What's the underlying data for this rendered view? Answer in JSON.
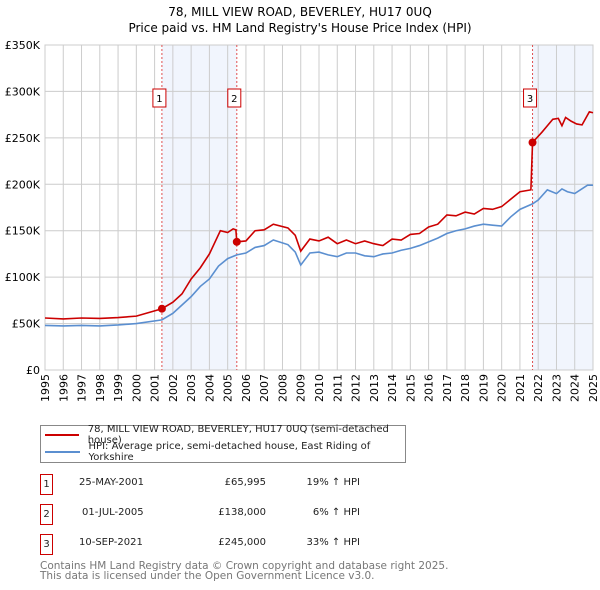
{
  "chart_data": {
    "type": "line",
    "title": "78, MILL VIEW ROAD, BEVERLEY, HU17 0UQ",
    "subtitle": "Price paid vs. HM Land Registry's House Price Index (HPI)",
    "xlim": [
      1995,
      2025
    ],
    "ylim": [
      0,
      350000
    ],
    "x_ticks": [
      "1995",
      "1996",
      "1997",
      "1998",
      "1999",
      "2000",
      "2001",
      "2002",
      "2003",
      "2004",
      "2005",
      "2006",
      "2007",
      "2008",
      "2009",
      "2010",
      "2011",
      "2012",
      "2013",
      "2014",
      "2015",
      "2016",
      "2017",
      "2018",
      "2019",
      "2020",
      "2021",
      "2022",
      "2023",
      "2024",
      "2025"
    ],
    "y_ticks": [
      {
        "v": 0,
        "label": "£0"
      },
      {
        "v": 50000,
        "label": "£50K"
      },
      {
        "v": 100000,
        "label": "£100K"
      },
      {
        "v": 150000,
        "label": "£150K"
      },
      {
        "v": 200000,
        "label": "£200K"
      },
      {
        "v": 250000,
        "label": "£250K"
      },
      {
        "v": 300000,
        "label": "£300K"
      },
      {
        "v": 350000,
        "label": "£350K"
      }
    ],
    "grid": true,
    "series": [
      {
        "name": "78, MILL VIEW ROAD, BEVERLEY, HU17 0UQ (semi-detached house)",
        "color": "#cc0000",
        "points": [
          [
            1995,
            56000
          ],
          [
            1996,
            55000
          ],
          [
            1997,
            56000
          ],
          [
            1998,
            55500
          ],
          [
            1999,
            56500
          ],
          [
            2000,
            58000
          ],
          [
            2001.4,
            66000
          ],
          [
            2002,
            73000
          ],
          [
            2002.5,
            82000
          ],
          [
            2003,
            98000
          ],
          [
            2003.5,
            110000
          ],
          [
            2004,
            125000
          ],
          [
            2004.6,
            150000
          ],
          [
            2005,
            148000
          ],
          [
            2005.3,
            152000
          ],
          [
            2005.45,
            151000
          ],
          [
            2005.5,
            138000
          ],
          [
            2006,
            139000
          ],
          [
            2006.5,
            150000
          ],
          [
            2007,
            151000
          ],
          [
            2007.5,
            157000
          ],
          [
            2008.3,
            153000
          ],
          [
            2008.7,
            145000
          ],
          [
            2009,
            128000
          ],
          [
            2009.5,
            141000
          ],
          [
            2010,
            139000
          ],
          [
            2010.5,
            143000
          ],
          [
            2011,
            136000
          ],
          [
            2011.5,
            140000
          ],
          [
            2012,
            136000
          ],
          [
            2012.5,
            139000
          ],
          [
            2013,
            136000
          ],
          [
            2013.5,
            134000
          ],
          [
            2014,
            141000
          ],
          [
            2014.5,
            140000
          ],
          [
            2015,
            146000
          ],
          [
            2015.5,
            147000
          ],
          [
            2016,
            154000
          ],
          [
            2016.5,
            157000
          ],
          [
            2017,
            167000
          ],
          [
            2017.5,
            166000
          ],
          [
            2018,
            170000
          ],
          [
            2018.5,
            168000
          ],
          [
            2019,
            174000
          ],
          [
            2019.5,
            173000
          ],
          [
            2020,
            176000
          ],
          [
            2020.5,
            184000
          ],
          [
            2021,
            192000
          ],
          [
            2021.6,
            194000
          ],
          [
            2021.69,
            245000
          ],
          [
            2022.2,
            256000
          ],
          [
            2022.8,
            270000
          ],
          [
            2023.1,
            271000
          ],
          [
            2023.3,
            263000
          ],
          [
            2023.5,
            272000
          ],
          [
            2023.8,
            268000
          ],
          [
            2024.1,
            265000
          ],
          [
            2024.4,
            264000
          ],
          [
            2024.8,
            278000
          ],
          [
            2025,
            277000
          ]
        ]
      },
      {
        "name": "HPI: Average price, semi-detached house, East Riding of Yorkshire",
        "color": "#5b8fd0",
        "points": [
          [
            1995,
            48000
          ],
          [
            1996,
            47500
          ],
          [
            1997,
            48000
          ],
          [
            1998,
            47500
          ],
          [
            1999,
            48500
          ],
          [
            2000,
            50000
          ],
          [
            2001.4,
            54000
          ],
          [
            2002,
            61000
          ],
          [
            2002.5,
            70000
          ],
          [
            2003,
            79000
          ],
          [
            2003.5,
            90000
          ],
          [
            2004,
            98000
          ],
          [
            2004.5,
            112000
          ],
          [
            2005,
            120000
          ],
          [
            2005.5,
            124000
          ],
          [
            2006,
            126000
          ],
          [
            2006.5,
            132000
          ],
          [
            2007,
            134000
          ],
          [
            2007.5,
            140000
          ],
          [
            2008.3,
            135000
          ],
          [
            2008.7,
            127000
          ],
          [
            2009,
            113000
          ],
          [
            2009.5,
            126000
          ],
          [
            2010,
            127000
          ],
          [
            2010.5,
            124000
          ],
          [
            2011,
            122000
          ],
          [
            2011.5,
            126000
          ],
          [
            2012,
            126000
          ],
          [
            2012.5,
            123000
          ],
          [
            2013,
            122000
          ],
          [
            2013.5,
            125000
          ],
          [
            2014,
            126000
          ],
          [
            2014.5,
            129000
          ],
          [
            2015,
            131000
          ],
          [
            2015.5,
            134000
          ],
          [
            2016,
            138000
          ],
          [
            2016.5,
            142000
          ],
          [
            2017,
            147000
          ],
          [
            2017.5,
            150000
          ],
          [
            2018,
            152000
          ],
          [
            2018.5,
            155000
          ],
          [
            2019,
            157000
          ],
          [
            2019.5,
            156000
          ],
          [
            2020,
            155000
          ],
          [
            2020.5,
            165000
          ],
          [
            2021,
            173000
          ],
          [
            2021.7,
            179000
          ],
          [
            2022,
            183000
          ],
          [
            2022.5,
            194000
          ],
          [
            2023,
            190000
          ],
          [
            2023.3,
            195000
          ],
          [
            2023.6,
            192000
          ],
          [
            2024,
            190000
          ],
          [
            2024.7,
            199000
          ],
          [
            2025,
            199000
          ]
        ]
      }
    ],
    "sales": [
      {
        "label": "1",
        "x": 2001.4,
        "y": 65995
      },
      {
        "label": "2",
        "x": 2005.5,
        "y": 138000
      },
      {
        "label": "3",
        "x": 2021.69,
        "y": 245000
      }
    ],
    "shaded_ranges": [
      [
        2001.4,
        2005.5
      ],
      [
        2021.69,
        2025
      ]
    ],
    "legend_placement": "below"
  },
  "legend": {
    "red": "78, MILL VIEW ROAD, BEVERLEY, HU17 0UQ (semi-detached house)",
    "blue": "HPI: Average price, semi-detached house, East Riding of Yorkshire"
  },
  "transactions": [
    {
      "num": "1",
      "date": "25-MAY-2001",
      "price": "£65,995",
      "hpi": "19% ↑ HPI"
    },
    {
      "num": "2",
      "date": "01-JUL-2005",
      "price": "£138,000",
      "hpi": "6% ↑ HPI"
    },
    {
      "num": "3",
      "date": "10-SEP-2021",
      "price": "£245,000",
      "hpi": "33% ↑ HPI"
    }
  ],
  "footer": {
    "line1": "Contains HM Land Registry data © Crown copyright and database right 2025.",
    "line2": "This data is licensed under the Open Government Licence v3.0."
  }
}
